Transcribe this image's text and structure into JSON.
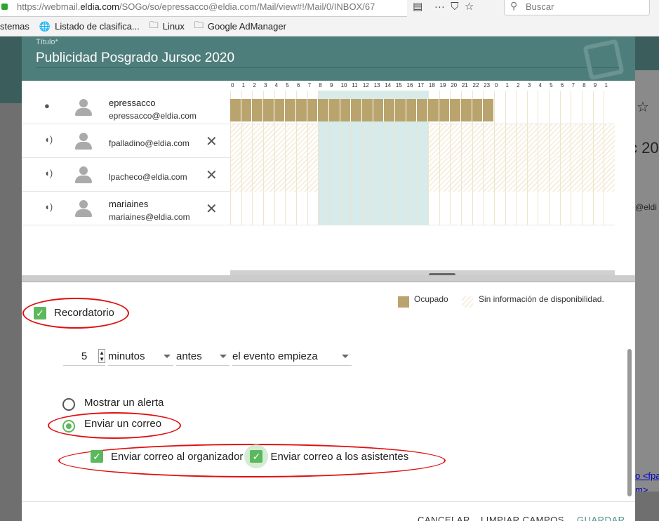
{
  "browser": {
    "url_prefix": "https://webmail.",
    "url_domain": "eldia.com",
    "url_rest": "/SOGo/so/epressacco@eldia.com/Mail/view#!/Mail/0/INBOX/67",
    "search_placeholder": "Buscar",
    "bookmarks": [
      "stemas",
      "Listado de clasifica...",
      "Linux",
      "Google AdManager"
    ]
  },
  "background": {
    "star": "☆",
    "title_fragment": "c 20",
    "email_fragment": "@eldi",
    "link1": "o <fpa",
    "link2": "m>"
  },
  "dialog": {
    "title_label": "Título*",
    "title": "Publicidad Posgrado Jursoc 2020",
    "hours": [
      "0",
      "1",
      "2",
      "3",
      "4",
      "5",
      "6",
      "7",
      "8",
      "9",
      "10",
      "11",
      "12",
      "13",
      "14",
      "15",
      "16",
      "17",
      "18",
      "19",
      "20",
      "21",
      "22",
      "23",
      "0",
      "1",
      "2",
      "3",
      "4",
      "5",
      "6",
      "7",
      "8",
      "9",
      "1"
    ],
    "highlight_hours": [
      8,
      17
    ],
    "attendees": [
      {
        "role_icon": "person-icon",
        "name": "epressacco",
        "email": "epressacco@eldia.com",
        "removable": false,
        "busy_hours": [
          0,
          23
        ]
      },
      {
        "role_icon": "speaker-icon",
        "name": "",
        "email": "fpalladino@eldia.com",
        "removable": true,
        "availability": "unknown"
      },
      {
        "role_icon": "speaker-icon",
        "name": "",
        "email": "lpacheco@eldia.com",
        "removable": true,
        "availability": "unknown"
      },
      {
        "role_icon": "speaker-icon",
        "name": "mariaines",
        "email": "mariaines@eldia.com",
        "removable": true,
        "availability": "free"
      }
    ],
    "legend": {
      "busy": "Ocupado",
      "unknown": "Sin información de disponibilidad."
    },
    "reminder": {
      "label": "Recordatorio",
      "checked": true,
      "value": "5",
      "unit": "minutos",
      "relation": "antes",
      "event": "el evento empieza",
      "actions": [
        {
          "label": "Mostrar un alerta",
          "selected": false
        },
        {
          "label": "Enviar un correo",
          "selected": true
        }
      ],
      "to_organizer": "Enviar correo al organizador",
      "to_attendees": "Enviar correo a los asistentes"
    },
    "buttons": {
      "cancel": "CANCELAR",
      "reset": "LIMPIAR CAMPOS",
      "save": "GUARDAR"
    }
  },
  "colors": {
    "header": "#4e7e7c",
    "busy": "#b9a46d",
    "highlight": "#d6ebea",
    "check": "#5cb85c",
    "annotation": "#e01010"
  }
}
